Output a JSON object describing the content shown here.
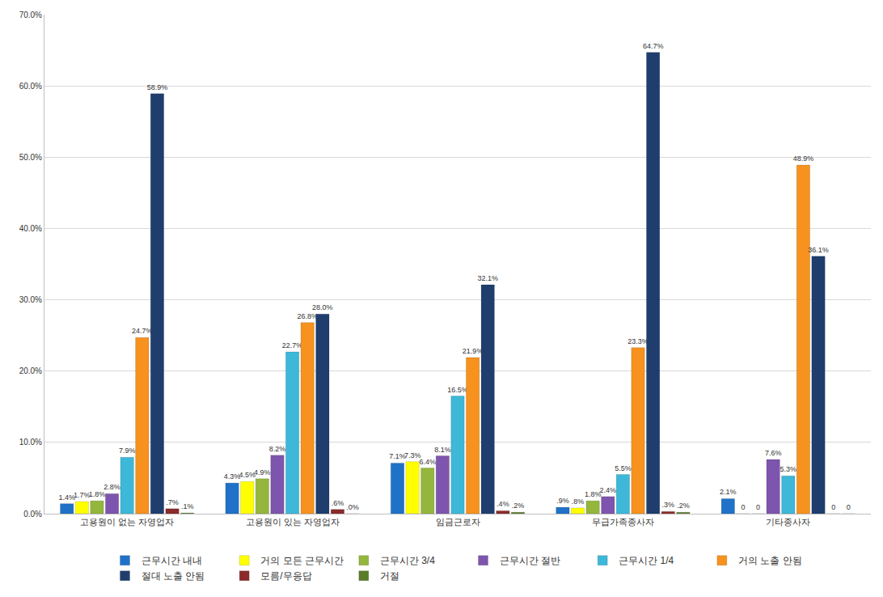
{
  "chart_data": {
    "type": "bar",
    "categories": [
      "고용원이 없는 자영업자",
      "고용원이 있는 자영업자",
      "임금근로자",
      "무급가족종사자",
      "기타종사자"
    ],
    "series": [
      {
        "name": "근무시간 내내",
        "color": "#1f72c8",
        "values": [
          1.4,
          4.3,
          7.1,
          0.9,
          2.1
        ],
        "value_labels": [
          "1.4%",
          "4.3%",
          "7.1%",
          ".9%",
          "2.1%"
        ]
      },
      {
        "name": "거의 모든 근무시간",
        "color": "#ffff00",
        "values": [
          1.7,
          4.5,
          7.3,
          0.8,
          0
        ],
        "value_labels": [
          "1.7%",
          "4.5%",
          "7.3%",
          ".8%",
          "0"
        ]
      },
      {
        "name": "근무시간 3/4",
        "color": "#94b63c",
        "values": [
          1.8,
          4.9,
          6.4,
          1.8,
          0
        ],
        "value_labels": [
          "1.8%",
          "4.9%",
          "6.4%",
          "1.8%",
          "0"
        ]
      },
      {
        "name": "근무시간 절반",
        "color": "#7e55ae",
        "values": [
          2.8,
          8.2,
          8.1,
          2.4,
          7.6
        ],
        "value_labels": [
          "2.8%",
          "8.2%",
          "8.1%",
          "2.4%",
          "7.6%"
        ]
      },
      {
        "name": "근무시간 1/4",
        "color": "#3db8d8",
        "values": [
          7.9,
          22.7,
          16.5,
          5.5,
          5.3
        ],
        "value_labels": [
          "7.9%",
          "22.7%",
          "16.5%",
          "5.5%",
          "5.3%"
        ]
      },
      {
        "name": "거의 노출 안됨",
        "color": "#f7921e",
        "values": [
          24.7,
          26.8,
          21.9,
          23.3,
          48.9
        ],
        "value_labels": [
          "24.7%",
          "26.8%",
          "21.9%",
          "23.3%",
          "48.9%"
        ]
      },
      {
        "name": "절대 노출 안됨",
        "color": "#1f3e6e",
        "values": [
          58.9,
          28.0,
          32.1,
          64.7,
          36.1
        ],
        "value_labels": [
          "58.9%",
          "28.0%",
          "32.1%",
          "64.7%",
          "36.1%"
        ]
      },
      {
        "name": "모름/무응답",
        "color": "#8c2b2b",
        "values": [
          0.7,
          0.6,
          0.4,
          0.3,
          0
        ],
        "value_labels": [
          ".7%",
          ".6%",
          ".4%",
          ".3%",
          "0"
        ]
      },
      {
        "name": "거절",
        "color": "#5b7d2b",
        "values": [
          0.1,
          0.0,
          0.2,
          0.2,
          0
        ],
        "value_labels": [
          ".1%",
          ".0%",
          ".2%",
          ".2%",
          "0"
        ]
      }
    ],
    "ylim": [
      0,
      70
    ],
    "yticks": [
      {
        "value": 0,
        "label": "0.0%"
      },
      {
        "value": 10,
        "label": "10.0%"
      },
      {
        "value": 20,
        "label": "20.0%"
      },
      {
        "value": 30,
        "label": "30.0%"
      },
      {
        "value": 40,
        "label": "40.0%"
      },
      {
        "value": 50,
        "label": "50.0%"
      },
      {
        "value": 60,
        "label": "60.0%"
      },
      {
        "value": 70,
        "label": "70.0%"
      }
    ],
    "grid": true,
    "legend": "bottom",
    "data_labels": true
  }
}
